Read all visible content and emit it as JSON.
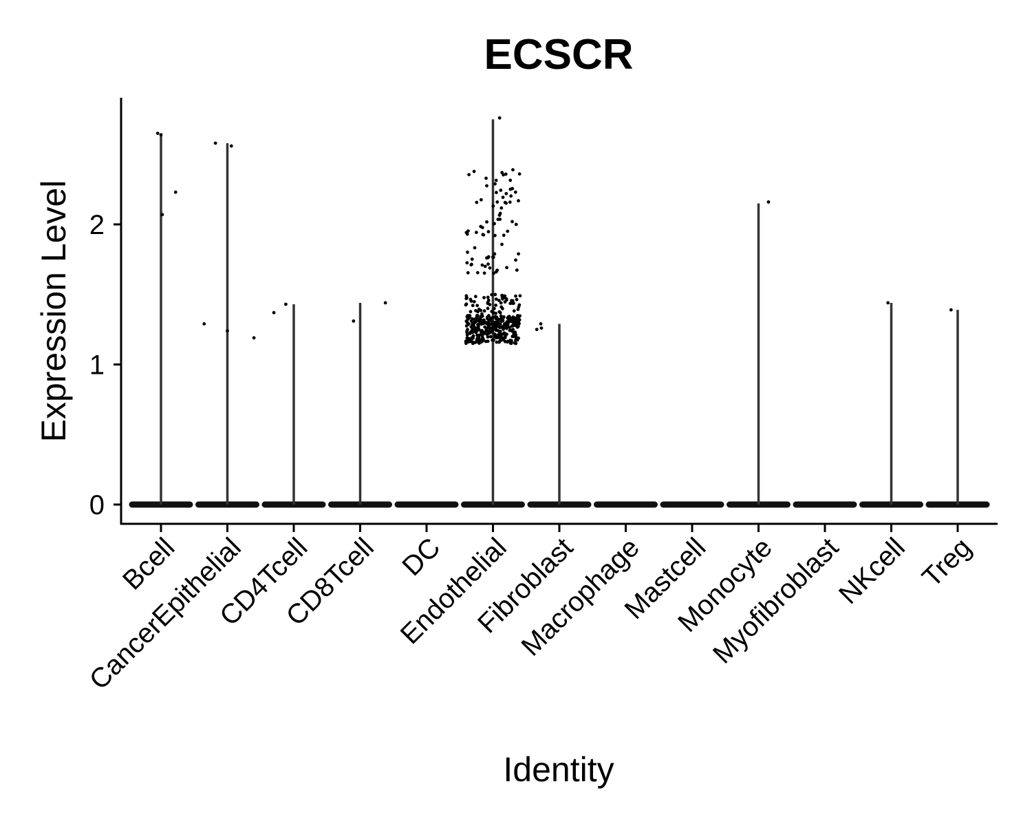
{
  "chart_data": {
    "type": "violin",
    "title": "ECSCR",
    "xlabel": "Identity",
    "ylabel": "Expression Level",
    "ylim": [
      -0.14,
      2.9
    ],
    "yticks": [
      0,
      1,
      2
    ],
    "grid": false,
    "legend": "none",
    "point_color": "#000000",
    "violin_color": "#333333",
    "categories": [
      "Bcell",
      "CancerEpithelial",
      "CD4Tcell",
      "CD8Tcell",
      "DC",
      "Endothelial",
      "Fibroblast",
      "Macrophage",
      "Mastcell",
      "Monocyte",
      "Myofibroblast",
      "NKcell",
      "Treg"
    ],
    "series": [
      {
        "category": "Bcell",
        "max": 2.64,
        "points": [
          [
            -0.05,
            2.65
          ],
          [
            0.02,
            2.07
          ],
          [
            0.22,
            2.23
          ],
          [
            0.0,
            2.64
          ]
        ]
      },
      {
        "category": "CancerEpithelial",
        "max": 2.58,
        "points": [
          [
            -0.18,
            2.58
          ],
          [
            0.06,
            2.56
          ],
          [
            -0.35,
            1.29
          ],
          [
            0.0,
            1.24
          ],
          [
            0.4,
            1.19
          ]
        ]
      },
      {
        "category": "CD4Tcell",
        "max": 1.43,
        "points": [
          [
            -0.3,
            1.37
          ],
          [
            -0.12,
            1.43
          ]
        ]
      },
      {
        "category": "CD8Tcell",
        "max": 1.44,
        "points": [
          [
            -0.1,
            1.31
          ],
          [
            0.38,
            1.44
          ]
        ]
      },
      {
        "category": "DC",
        "max": 0,
        "points": []
      },
      {
        "category": "Endothelial",
        "max": 2.75,
        "cluster": {
          "low_band": [
            1.15,
            1.35
          ],
          "low_count": 320,
          "mid_band": [
            1.36,
            1.5
          ],
          "mid_count": 60,
          "high_band": [
            1.65,
            2.4
          ],
          "high_count": 70
        },
        "points": [
          [
            0.1,
            2.76
          ],
          [
            0.3,
            2.39
          ],
          [
            0.4,
            2.36
          ],
          [
            0.2,
            2.22
          ],
          [
            0.34,
            2.23
          ],
          [
            0.29,
            2.02
          ],
          [
            0.35,
            2.0
          ],
          [
            0.66,
            1.25
          ],
          [
            0.72,
            1.29
          ],
          [
            0.73,
            1.26
          ]
        ]
      },
      {
        "category": "Fibroblast",
        "max": 1.29,
        "points": []
      },
      {
        "category": "Macrophage",
        "max": 0,
        "points": []
      },
      {
        "category": "Mastcell",
        "max": 0,
        "points": []
      },
      {
        "category": "Monocyte",
        "max": 2.15,
        "points": [
          [
            0.15,
            2.16
          ]
        ]
      },
      {
        "category": "Myofibroblast",
        "max": 0,
        "points": []
      },
      {
        "category": "NKcell",
        "max": 1.44,
        "points": [
          [
            -0.05,
            1.44
          ]
        ]
      },
      {
        "category": "Treg",
        "max": 1.39,
        "points": [
          [
            -0.1,
            1.39
          ]
        ]
      }
    ]
  }
}
